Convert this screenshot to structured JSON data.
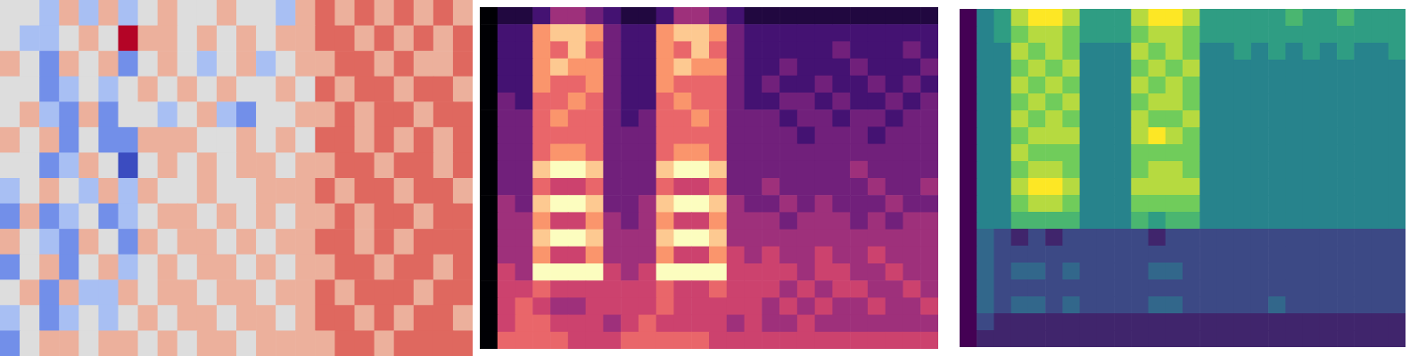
{
  "chart_data": [
    {
      "type": "heatmap",
      "color": "coolwarm",
      "tick_labels": false,
      "cells": [
        [
          0,
          0,
          -1,
          1,
          -1,
          1,
          -1,
          0,
          1,
          0,
          0,
          1,
          0,
          0,
          -1,
          1,
          2,
          1,
          2,
          1,
          2,
          1,
          2,
          1
        ],
        [
          0,
          -1,
          -1,
          0,
          1,
          0,
          3,
          1,
          1,
          0,
          1,
          0,
          1,
          0,
          1,
          1,
          2,
          2,
          1,
          2,
          1,
          2,
          1,
          2
        ],
        [
          1,
          0,
          -2,
          1,
          0,
          1,
          -2,
          0,
          1,
          0,
          -1,
          0,
          1,
          -1,
          0,
          1,
          1,
          2,
          2,
          1,
          2,
          1,
          1,
          2
        ],
        [
          0,
          0,
          -2,
          -1,
          0,
          -1,
          0,
          1,
          0,
          1,
          0,
          1,
          0,
          0,
          1,
          0,
          2,
          1,
          2,
          2,
          1,
          2,
          2,
          1
        ],
        [
          0,
          1,
          -1,
          -2,
          1,
          -2,
          0,
          0,
          -1,
          0,
          1,
          -1,
          -2,
          0,
          0,
          1,
          1,
          2,
          1,
          2,
          2,
          1,
          2,
          2
        ],
        [
          1,
          0,
          1,
          -2,
          0,
          -2,
          -2,
          1,
          1,
          1,
          0,
          0,
          1,
          0,
          1,
          0,
          2,
          2,
          1,
          2,
          1,
          2,
          1,
          2
        ],
        [
          0,
          0,
          -2,
          -1,
          1,
          0,
          -3,
          0,
          1,
          0,
          1,
          0,
          1,
          1,
          0,
          1,
          1,
          2,
          2,
          1,
          2,
          2,
          1,
          2
        ],
        [
          -1,
          0,
          1,
          0,
          -1,
          1,
          -1,
          1,
          0,
          0,
          1,
          0,
          0,
          1,
          1,
          1,
          2,
          1,
          2,
          2,
          1,
          2,
          2,
          1
        ],
        [
          -2,
          1,
          -2,
          -1,
          0,
          -2,
          -1,
          0,
          1,
          1,
          0,
          1,
          0,
          1,
          0,
          1,
          1,
          2,
          1,
          2,
          2,
          1,
          2,
          2
        ],
        [
          1,
          0,
          -1,
          -2,
          1,
          0,
          -2,
          1,
          0,
          1,
          1,
          0,
          1,
          0,
          1,
          1,
          2,
          2,
          1,
          2,
          1,
          2,
          2,
          2
        ],
        [
          -2,
          0,
          1,
          -2,
          0,
          1,
          -1,
          0,
          1,
          0,
          1,
          1,
          0,
          1,
          0,
          1,
          1,
          2,
          2,
          1,
          2,
          2,
          1,
          2
        ],
        [
          0,
          1,
          -2,
          1,
          -1,
          -1,
          1,
          0,
          1,
          1,
          0,
          1,
          1,
          0,
          1,
          1,
          2,
          1,
          2,
          2,
          2,
          1,
          2,
          2
        ],
        [
          -1,
          0,
          -2,
          -1,
          0,
          -1,
          0,
          1,
          0,
          1,
          1,
          0,
          1,
          1,
          0,
          1,
          2,
          2,
          1,
          2,
          1,
          2,
          2,
          1
        ],
        [
          -2,
          0,
          1,
          1,
          0,
          1,
          1,
          0,
          1,
          0,
          1,
          1,
          0,
          1,
          1,
          1,
          1,
          2,
          2,
          1,
          2,
          2,
          2,
          2
        ]
      ]
    },
    {
      "type": "heatmap",
      "color": "magma",
      "tick_labels": false,
      "cells": [
        [
          0,
          1,
          1,
          2,
          4,
          4,
          3,
          2,
          1,
          1,
          2,
          4,
          4,
          3,
          2,
          1,
          1,
          1,
          1,
          1,
          1,
          1,
          1,
          1,
          1,
          1
        ],
        [
          0,
          2,
          2,
          7,
          8,
          8,
          7,
          3,
          2,
          2,
          7,
          8,
          8,
          7,
          3,
          2,
          2,
          2,
          2,
          2,
          2,
          2,
          2,
          2,
          2,
          2
        ],
        [
          0,
          2,
          2,
          7,
          6,
          8,
          6,
          3,
          2,
          2,
          7,
          6,
          8,
          6,
          3,
          2,
          2,
          2,
          2,
          2,
          3,
          2,
          2,
          2,
          3,
          2
        ],
        [
          0,
          2,
          2,
          7,
          8,
          7,
          7,
          3,
          2,
          2,
          7,
          8,
          7,
          7,
          3,
          2,
          2,
          3,
          2,
          2,
          2,
          3,
          2,
          2,
          2,
          3
        ],
        [
          0,
          2,
          2,
          7,
          6,
          6,
          7,
          3,
          2,
          2,
          7,
          6,
          6,
          6,
          3,
          2,
          3,
          2,
          2,
          3,
          2,
          2,
          3,
          2,
          3,
          2
        ],
        [
          0,
          3,
          2,
          6,
          6,
          7,
          6,
          3,
          2,
          2,
          6,
          7,
          6,
          6,
          3,
          2,
          2,
          3,
          3,
          2,
          3,
          2,
          2,
          3,
          2,
          3
        ],
        [
          0,
          3,
          3,
          6,
          7,
          6,
          6,
          3,
          2,
          3,
          6,
          6,
          7,
          6,
          3,
          3,
          3,
          2,
          3,
          3,
          2,
          3,
          3,
          2,
          3,
          3
        ],
        [
          0,
          3,
          3,
          6,
          6,
          6,
          6,
          3,
          3,
          3,
          6,
          6,
          6,
          6,
          3,
          3,
          3,
          3,
          2,
          3,
          3,
          3,
          2,
          3,
          3,
          3
        ],
        [
          0,
          3,
          3,
          6,
          7,
          7,
          6,
          3,
          3,
          3,
          6,
          7,
          7,
          6,
          3,
          3,
          3,
          3,
          3,
          3,
          3,
          3,
          3,
          3,
          3,
          3
        ],
        [
          0,
          3,
          3,
          8,
          9,
          9,
          8,
          3,
          3,
          3,
          8,
          9,
          9,
          8,
          3,
          3,
          3,
          3,
          3,
          3,
          3,
          4,
          3,
          3,
          3,
          3
        ],
        [
          0,
          3,
          3,
          6,
          5,
          5,
          6,
          3,
          3,
          3,
          6,
          5,
          5,
          6,
          3,
          3,
          4,
          3,
          3,
          3,
          3,
          3,
          4,
          3,
          3,
          4
        ],
        [
          0,
          4,
          3,
          8,
          9,
          9,
          8,
          3,
          3,
          4,
          8,
          9,
          9,
          8,
          4,
          3,
          3,
          4,
          3,
          4,
          3,
          3,
          3,
          4,
          3,
          3
        ],
        [
          0,
          4,
          4,
          7,
          5,
          5,
          7,
          4,
          3,
          4,
          7,
          5,
          5,
          7,
          4,
          4,
          4,
          3,
          4,
          4,
          4,
          3,
          4,
          3,
          4,
          4
        ],
        [
          0,
          4,
          4,
          8,
          9,
          9,
          8,
          4,
          4,
          4,
          8,
          9,
          9,
          8,
          4,
          4,
          4,
          4,
          4,
          4,
          4,
          4,
          4,
          4,
          4,
          4
        ],
        [
          0,
          4,
          4,
          7,
          5,
          5,
          7,
          4,
          4,
          4,
          7,
          5,
          5,
          7,
          5,
          4,
          5,
          4,
          4,
          5,
          4,
          4,
          5,
          4,
          4,
          4
        ],
        [
          0,
          5,
          4,
          9,
          9,
          9,
          9,
          5,
          4,
          5,
          9,
          9,
          9,
          9,
          5,
          5,
          5,
          5,
          4,
          5,
          5,
          4,
          4,
          5,
          4,
          4
        ],
        [
          0,
          5,
          5,
          6,
          5,
          5,
          5,
          5,
          5,
          5,
          6,
          5,
          5,
          6,
          5,
          5,
          5,
          4,
          5,
          4,
          5,
          5,
          4,
          4,
          5,
          4
        ],
        [
          0,
          5,
          6,
          5,
          4,
          4,
          5,
          5,
          5,
          5,
          6,
          5,
          5,
          5,
          5,
          5,
          4,
          5,
          4,
          5,
          4,
          4,
          5,
          4,
          4,
          5
        ],
        [
          0,
          5,
          6,
          6,
          5,
          5,
          5,
          4,
          5,
          6,
          5,
          5,
          5,
          5,
          4,
          5,
          4,
          4,
          5,
          4,
          4,
          4,
          4,
          4,
          4,
          4
        ],
        [
          0,
          6,
          6,
          6,
          6,
          5,
          5,
          5,
          6,
          6,
          6,
          6,
          6,
          5,
          5,
          5,
          5,
          5,
          5,
          5,
          5,
          5,
          5,
          5,
          5,
          5
        ]
      ]
    },
    {
      "type": "heatmap",
      "color": "viridis",
      "tick_labels": false,
      "cells": [
        [
          0,
          4,
          5,
          8,
          9,
          9,
          8,
          5,
          5,
          5,
          8,
          9,
          9,
          8,
          5,
          5,
          5,
          5,
          5,
          6,
          5,
          5,
          6,
          5,
          5,
          5
        ],
        [
          0,
          4,
          5,
          7,
          8,
          8,
          7,
          5,
          5,
          5,
          7,
          8,
          8,
          7,
          5,
          5,
          5,
          5,
          5,
          5,
          5,
          5,
          5,
          5,
          5,
          5
        ],
        [
          0,
          4,
          4,
          8,
          7,
          8,
          7,
          4,
          4,
          4,
          8,
          7,
          8,
          7,
          4,
          4,
          5,
          4,
          5,
          4,
          5,
          4,
          5,
          4,
          4,
          5
        ],
        [
          0,
          4,
          4,
          7,
          8,
          7,
          8,
          4,
          4,
          4,
          7,
          8,
          7,
          8,
          4,
          4,
          4,
          4,
          4,
          4,
          4,
          4,
          4,
          4,
          4,
          4
        ],
        [
          0,
          4,
          4,
          8,
          7,
          8,
          7,
          4,
          4,
          4,
          8,
          7,
          8,
          7,
          4,
          4,
          4,
          4,
          4,
          4,
          4,
          4,
          4,
          4,
          4,
          4
        ],
        [
          0,
          4,
          4,
          7,
          8,
          7,
          8,
          4,
          4,
          4,
          7,
          8,
          8,
          7,
          4,
          4,
          4,
          4,
          4,
          4,
          4,
          4,
          4,
          4,
          4,
          4
        ],
        [
          0,
          4,
          4,
          8,
          7,
          8,
          7,
          4,
          4,
          4,
          8,
          7,
          7,
          8,
          4,
          4,
          4,
          4,
          4,
          4,
          4,
          4,
          4,
          4,
          4,
          4
        ],
        [
          0,
          4,
          4,
          7,
          8,
          8,
          8,
          4,
          4,
          4,
          8,
          9,
          8,
          7,
          4,
          4,
          4,
          4,
          4,
          4,
          4,
          4,
          4,
          4,
          4,
          4
        ],
        [
          0,
          4,
          4,
          8,
          7,
          7,
          7,
          4,
          4,
          4,
          7,
          7,
          7,
          7,
          4,
          4,
          4,
          4,
          4,
          4,
          4,
          4,
          4,
          4,
          4,
          4
        ],
        [
          0,
          4,
          4,
          7,
          8,
          8,
          7,
          4,
          4,
          4,
          7,
          8,
          8,
          7,
          4,
          4,
          4,
          4,
          4,
          4,
          4,
          4,
          4,
          4,
          4,
          4
        ],
        [
          0,
          4,
          4,
          8,
          9,
          9,
          8,
          4,
          4,
          4,
          8,
          8,
          8,
          8,
          4,
          4,
          4,
          4,
          4,
          4,
          4,
          4,
          4,
          4,
          4,
          4
        ],
        [
          0,
          4,
          4,
          7,
          8,
          8,
          7,
          4,
          4,
          4,
          7,
          7,
          7,
          7,
          4,
          4,
          4,
          4,
          4,
          4,
          4,
          4,
          4,
          4,
          4,
          4
        ],
        [
          0,
          4,
          4,
          6,
          6,
          6,
          6,
          4,
          4,
          4,
          6,
          5,
          6,
          6,
          4,
          4,
          4,
          4,
          4,
          4,
          4,
          4,
          4,
          4,
          4,
          4
        ],
        [
          0,
          3,
          2,
          1,
          2,
          1,
          2,
          2,
          2,
          2,
          2,
          1,
          2,
          2,
          2,
          2,
          2,
          2,
          2,
          2,
          2,
          2,
          2,
          2,
          2,
          2
        ],
        [
          0,
          3,
          2,
          2,
          2,
          2,
          2,
          2,
          2,
          2,
          2,
          2,
          2,
          2,
          2,
          2,
          2,
          2,
          2,
          2,
          2,
          2,
          2,
          2,
          2,
          2
        ],
        [
          0,
          3,
          2,
          3,
          3,
          2,
          3,
          2,
          2,
          2,
          2,
          3,
          3,
          2,
          2,
          2,
          2,
          2,
          2,
          2,
          2,
          2,
          2,
          2,
          2,
          2
        ],
        [
          0,
          3,
          2,
          2,
          2,
          2,
          2,
          2,
          2,
          2,
          2,
          2,
          2,
          2,
          2,
          2,
          2,
          2,
          2,
          2,
          2,
          2,
          2,
          2,
          2,
          2
        ],
        [
          0,
          3,
          2,
          3,
          3,
          2,
          3,
          2,
          2,
          2,
          2,
          3,
          3,
          2,
          2,
          2,
          2,
          2,
          3,
          2,
          2,
          2,
          2,
          2,
          2,
          2
        ],
        [
          0,
          2,
          1,
          1,
          1,
          1,
          1,
          1,
          1,
          1,
          1,
          1,
          1,
          1,
          1,
          1,
          1,
          1,
          1,
          1,
          1,
          1,
          1,
          1,
          1,
          1
        ],
        [
          0,
          1,
          1,
          1,
          1,
          1,
          1,
          1,
          1,
          1,
          1,
          1,
          1,
          1,
          1,
          1,
          1,
          1,
          1,
          1,
          1,
          1,
          1,
          1,
          1,
          1
        ]
      ]
    }
  ]
}
